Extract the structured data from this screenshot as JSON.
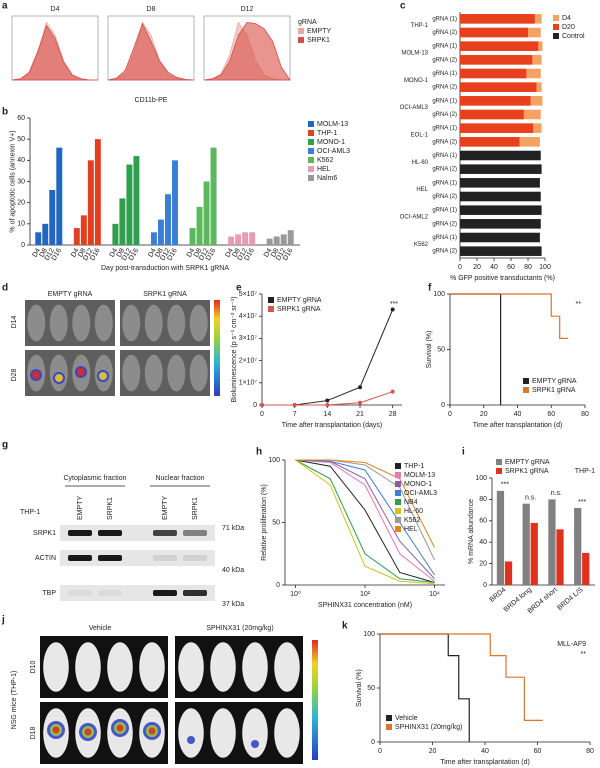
{
  "chart_data": [
    {
      "type": "area",
      "label": "a",
      "title": "D4",
      "x": [
        0,
        1,
        2,
        3,
        4,
        5,
        6,
        7,
        8,
        9,
        10
      ],
      "xlim": [
        0,
        10
      ],
      "ylim": [
        0,
        100
      ],
      "series": [
        {
          "color": "#e9a9a3",
          "values": [
            0,
            2,
            10,
            40,
            90,
            70,
            30,
            8,
            2,
            0,
            0
          ]
        },
        {
          "color": "#d94c45",
          "values": [
            0,
            2,
            12,
            45,
            85,
            65,
            28,
            8,
            2,
            0,
            0
          ]
        }
      ]
    },
    {
      "type": "area",
      "title": "D8",
      "xlabel": "CD11b-PE",
      "x": [
        0,
        1,
        2,
        3,
        4,
        5,
        6,
        7,
        8,
        9,
        10
      ],
      "xlim": [
        0,
        10
      ],
      "ylim": [
        0,
        100
      ],
      "series": [
        {
          "color": "#e9a9a3",
          "values": [
            0,
            2,
            10,
            40,
            90,
            70,
            30,
            8,
            2,
            0,
            0
          ]
        },
        {
          "color": "#d94c45",
          "values": [
            0,
            3,
            15,
            50,
            88,
            60,
            30,
            12,
            4,
            1,
            0
          ]
        }
      ]
    },
    {
      "type": "area",
      "title": "D12",
      "x": [
        0,
        1,
        2,
        3,
        4,
        5,
        6,
        7,
        8,
        9,
        10
      ],
      "xlim": [
        0,
        10
      ],
      "ylim": [
        0,
        100
      ],
      "legend": "right",
      "legend_title": "gRNA",
      "series": [
        {
          "name": "EMPTY",
          "color": "#e9a9a3",
          "values": [
            0,
            2,
            10,
            40,
            90,
            70,
            30,
            8,
            2,
            0,
            0
          ]
        },
        {
          "name": "SRPK1",
          "color": "#d94c45",
          "values": [
            0,
            2,
            8,
            30,
            70,
            90,
            88,
            80,
            60,
            20,
            0
          ]
        }
      ]
    },
    {
      "type": "bar",
      "label": "b",
      "group_by": "series",
      "categories": [
        "D4",
        "D8",
        "D12",
        "D16"
      ],
      "ylim": [
        0,
        60
      ],
      "yticks": [
        0,
        10,
        20,
        30,
        40,
        50,
        60
      ],
      "ylabel": "% of apoptotic cells (annexin V+)",
      "xlabel": "Day post-transduction with SRPK1 gRNA",
      "legend": "right",
      "series": [
        {
          "name": "MOLM-13",
          "color": "#2166c4",
          "values": [
            6,
            10,
            26,
            46
          ]
        },
        {
          "name": "THP-1",
          "color": "#e0401f",
          "values": [
            8,
            14,
            40,
            50
          ]
        },
        {
          "name": "MONO-1",
          "color": "#2e9e4f",
          "values": [
            10,
            22,
            38,
            42
          ]
        },
        {
          "name": "OCI-AML3",
          "color": "#3a7fd6",
          "values": [
            6,
            12,
            24,
            40
          ]
        },
        {
          "name": "K562",
          "color": "#5cb85c",
          "values": [
            8,
            18,
            30,
            46
          ]
        },
        {
          "name": "HEL",
          "color": "#e89bb6",
          "values": [
            4,
            5,
            6,
            6
          ]
        },
        {
          "name": "Nalm6",
          "color": "#999999",
          "values": [
            3,
            4,
            5,
            7
          ]
        }
      ]
    },
    {
      "type": "hbar",
      "label": "c",
      "categories": [
        "gRNA (1)",
        "gRNA (2)",
        "gRNA (1)",
        "gRNA (2)",
        "gRNA (1)",
        "gRNA (2)",
        "gRNA (1)",
        "gRNA (2)",
        "gRNA (1)",
        "gRNA (2)",
        "gRNA (1)",
        "gRNA (2)",
        "gRNA (1)",
        "gRNA (2)",
        "gRNA (1)",
        "gRNA (2)",
        "gRNA (1)",
        "gRNA (2)"
      ],
      "groups": [
        "THP-1",
        "MOLM-13",
        "MONO-1",
        "OCI-AML3",
        "EOL-1",
        "HL-60",
        "HEL",
        "OCI-AML2",
        "K562"
      ],
      "xlim": [
        0,
        100
      ],
      "xticks": [
        0,
        20,
        40,
        60,
        80,
        100
      ],
      "xlabel": "% GFP positive transductants (%)",
      "legend": "right",
      "series": [
        {
          "name": "D4",
          "color": "#f4a261",
          "values": [
            96,
            95,
            97,
            96,
            95,
            96,
            97,
            95,
            96,
            94,
            null,
            null,
            null,
            null,
            null,
            null,
            null,
            null
          ]
        },
        {
          "name": "D20",
          "color": "#e8401c",
          "values": [
            88,
            80,
            92,
            85,
            78,
            90,
            83,
            75,
            86,
            70,
            null,
            null,
            null,
            null,
            null,
            null,
            null,
            null
          ]
        },
        {
          "name": "Control",
          "color": "#222222",
          "values": [
            null,
            null,
            null,
            null,
            null,
            null,
            null,
            null,
            null,
            null,
            95,
            96,
            94,
            95,
            96,
            95,
            94,
            96
          ]
        }
      ]
    },
    {
      "type": "line",
      "label": "e",
      "markers": true,
      "x": [
        0,
        7,
        14,
        21,
        28
      ],
      "xlim": [
        0,
        30
      ],
      "xticks": [
        0,
        7,
        14,
        21,
        28
      ],
      "ylim": [
        0,
        50000000
      ],
      "yticks": [
        0,
        {
          "value": 10000000,
          "label": "1×10⁷"
        },
        {
          "value": 20000000,
          "label": "2×10⁷"
        },
        {
          "value": 30000000,
          "label": "3×10⁷"
        },
        {
          "value": 40000000,
          "label": "4×10⁷"
        },
        {
          "value": 50000000,
          "label": "5×10⁷"
        }
      ],
      "ylabel": "Bioluminescence (p s⁻¹ cm⁻² sr⁻¹)",
      "xlabel": "Time after transplantation (days)",
      "legend": "upper left",
      "annotations": [
        "***"
      ],
      "series": [
        {
          "name": "EMPTY gRNA",
          "color": "#222222",
          "values": [
            0,
            0,
            2000000,
            8000000,
            43000000
          ]
        },
        {
          "name": "SRPK1 gRNA",
          "color": "#d9534f",
          "values": [
            0,
            0,
            0,
            1000000,
            6000000
          ]
        }
      ]
    },
    {
      "type": "step",
      "label": "f",
      "x": [
        0,
        29,
        30,
        55,
        60,
        65,
        70
      ],
      "xlim": [
        0,
        80
      ],
      "xticks": [
        0,
        20,
        40,
        60,
        80
      ],
      "ylim": [
        0,
        100
      ],
      "yticks": [
        0,
        50,
        100
      ],
      "ylabel": "Survival (%)",
      "xlabel": "Time after transplantation (d)",
      "legend": "lower right",
      "annotations": [
        "**"
      ],
      "series": [
        {
          "name": "EMPTY gRNA",
          "color": "#222222",
          "values": [
            100,
            100,
            0,
            null,
            null,
            null,
            null
          ]
        },
        {
          "name": "SRPK1 gRNA",
          "color": "#d9772f",
          "values": [
            100,
            100,
            100,
            100,
            80,
            60,
            60
          ]
        }
      ]
    },
    {
      "type": "line",
      "label": "h",
      "x": [
        1,
        10,
        100,
        1000,
        10000
      ],
      "xlim": [
        0.5,
        20000
      ],
      "xlog": true,
      "xticks": [
        {
          "value": 1,
          "label": "10⁰"
        },
        {
          "value": 100,
          "label": "10²"
        },
        {
          "value": 10000,
          "label": "10⁴"
        }
      ],
      "ylim": [
        0,
        100
      ],
      "yticks": [
        0,
        50,
        100
      ],
      "ylabel": "Relative proliferation (%)",
      "xlabel": "SPHINX31 concentration (nM)",
      "legend": "upper right",
      "series": [
        {
          "name": "THP-1",
          "color": "#222222",
          "values": [
            100,
            95,
            60,
            10,
            2
          ]
        },
        {
          "name": "MOLM-13",
          "color": "#e377c2",
          "values": [
            100,
            98,
            80,
            25,
            3
          ]
        },
        {
          "name": "MONO-1",
          "color": "#8e5ea2",
          "values": [
            100,
            99,
            85,
            35,
            5
          ]
        },
        {
          "name": "OCI-AML3",
          "color": "#3a7fd6",
          "values": [
            100,
            99,
            92,
            50,
            8
          ]
        },
        {
          "name": "NB4",
          "color": "#2e9e4f",
          "values": [
            100,
            85,
            25,
            5,
            2
          ]
        },
        {
          "name": "HL-60",
          "color": "#d4c21a",
          "values": [
            100,
            80,
            15,
            3,
            1
          ]
        },
        {
          "name": "K562",
          "color": "#999999",
          "values": [
            100,
            100,
            96,
            78,
            20
          ]
        },
        {
          "name": "HEL",
          "color": "#e8801c",
          "values": [
            100,
            100,
            98,
            85,
            30
          ]
        }
      ]
    },
    {
      "type": "bar",
      "label": "i",
      "title": "THP-1",
      "categories": [
        "BRD4",
        "BRD4 long",
        "BRD4 short",
        "BRD4 L/S"
      ],
      "ylim": [
        0,
        100
      ],
      "yticks": [
        0,
        20,
        40,
        60,
        80,
        100
      ],
      "ylabel": "% mRNA abundance",
      "legend": "top",
      "annotations": [
        "***",
        "n.s.",
        "n.s.",
        "***"
      ],
      "series": [
        {
          "name": "EMPTY gRNA",
          "color": "#808080",
          "values": [
            88,
            76,
            80,
            72
          ]
        },
        {
          "name": "SRPK1 gRNA",
          "color": "#e0301e",
          "values": [
            22,
            58,
            52,
            30
          ]
        }
      ]
    },
    {
      "type": "step",
      "label": "k",
      "x": [
        0,
        22,
        26,
        30,
        34,
        42,
        48,
        55,
        62
      ],
      "xlim": [
        0,
        80
      ],
      "xticks": [
        0,
        20,
        40,
        60,
        80
      ],
      "ylim": [
        0,
        100
      ],
      "yticks": [
        0,
        50,
        100
      ],
      "ylabel": "Survival (%)",
      "xlabel": "Time after transplantation (d)",
      "legend": "lower left",
      "annotations": [
        "MLL-AF9",
        "**"
      ],
      "series": [
        {
          "name": "Vehicle",
          "color": "#222222",
          "values": [
            100,
            100,
            80,
            40,
            0,
            null,
            null,
            null,
            null
          ]
        },
        {
          "name": "SPHINX31 (20mg/kg)",
          "color": "#d9772f",
          "values": [
            100,
            100,
            100,
            100,
            100,
            80,
            60,
            20,
            20
          ]
        }
      ]
    }
  ],
  "images": [
    {
      "label": "d",
      "columns": [
        "EMPTY gRNA",
        "SRPK1 gRNA"
      ],
      "rows": [
        "D14",
        "D28"
      ]
    },
    {
      "label": "g",
      "header": "THP-1",
      "fractions": [
        "Cytoplasmic fraction",
        "Nuclear fraction"
      ],
      "lanes": [
        "EMPTY",
        "SRPK1",
        "EMPTY",
        "SRPK1"
      ],
      "bands": [
        "SRPK1",
        "ACTIN",
        "TBP"
      ],
      "markers": [
        "71 kDa",
        "40 kDa",
        "37 kDa"
      ]
    },
    {
      "label": "j",
      "columns": [
        "Vehicle",
        "SPHINX31 (20mg/kg)"
      ],
      "rows": [
        "D10",
        "D18"
      ],
      "side": "NSG mice (THP-1)"
    }
  ]
}
